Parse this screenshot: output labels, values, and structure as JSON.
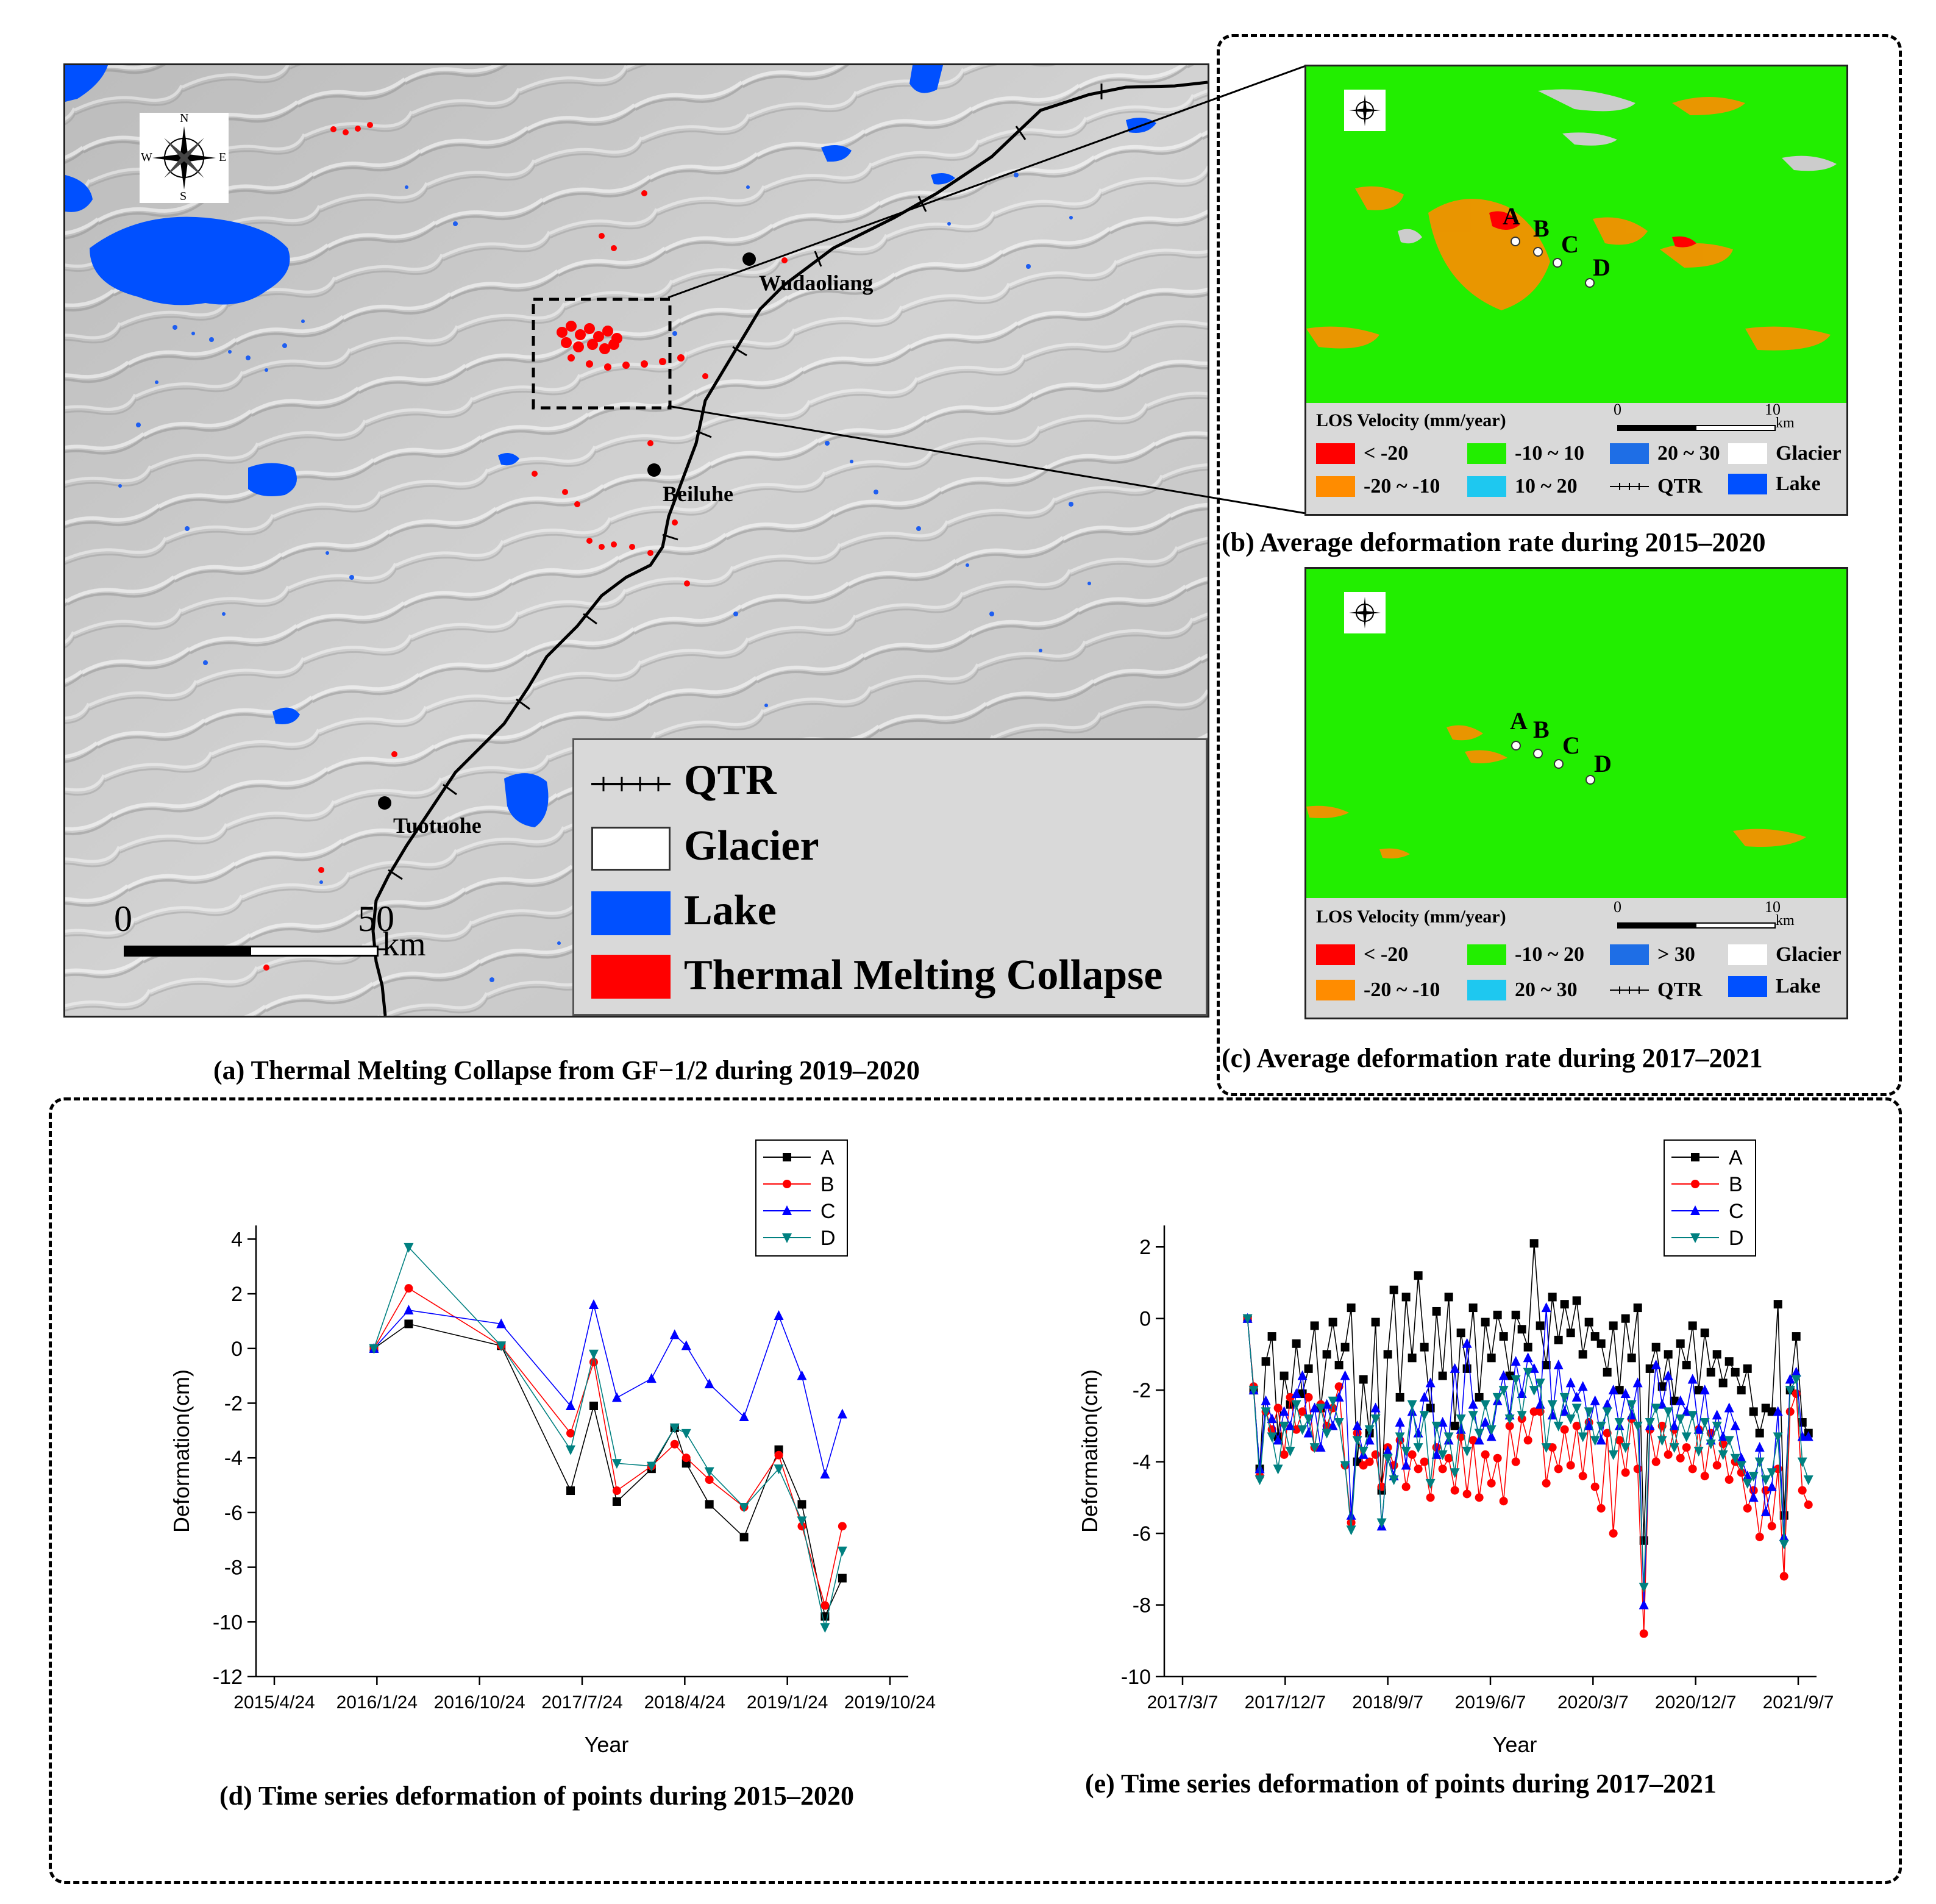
{
  "colors": {
    "deform_lt_neg20": "#ff0000",
    "deform_neg20_neg10": "#ff8c00",
    "deform_neg10_10": "#22ee00",
    "deform_10_20": "#1ec8f0",
    "deform_20_30": "#1e6ee6",
    "lake": "#0050ff",
    "collapse": "#ff0000",
    "series_A": "#000000",
    "series_B": "#ff0000",
    "series_C": "#0000ff",
    "series_D": "#008080"
  },
  "panel_a": {
    "caption": "(a) Thermal Melting Collapse from GF−1/2 during 2019–2020",
    "places": [
      "Wudaoliang",
      "Beiluhe",
      "Tuotuohe"
    ],
    "scale": {
      "zero": "0",
      "max": "50",
      "unit": "km"
    },
    "compass": {
      "n": "N",
      "s": "S",
      "e": "E",
      "w": "W"
    },
    "legend": {
      "qtr": "QTR",
      "glacier": "Glacier",
      "lake": "Lake",
      "collapse": "Thermal Melting Collapse"
    }
  },
  "panel_b": {
    "caption": "(b) Average deformation rate during 2015–2020",
    "points": [
      "A",
      "B",
      "C",
      "D"
    ],
    "scale": {
      "zero": "0",
      "max": "10",
      "unit": "km"
    },
    "legend": {
      "title": "LOS Velocity (mm/year)",
      "items": [
        "< -20",
        "-20 ~ -10",
        "-10 ~ 10",
        "10 ~ 20",
        "20 ~ 30",
        "QTR",
        "Glacier",
        "Lake"
      ]
    }
  },
  "panel_c": {
    "caption": "(c) Average deformation rate during 2017–2021",
    "points": [
      "A",
      "B",
      "C",
      "D"
    ],
    "scale": {
      "zero": "0",
      "max": "10",
      "unit": "km"
    },
    "legend": {
      "title": "LOS Velocity (mm/year)",
      "items": [
        "< -20",
        "-20 ~ -10",
        "-10 ~ 20",
        "20 ~ 30",
        "> 30",
        "QTR",
        "Glacier",
        "Lake"
      ]
    }
  },
  "chart_data": [
    {
      "type": "line",
      "title": "(d) Time series deformation of points during 2015–2020",
      "xlabel": "Year",
      "ylabel": "Deformation(cm)",
      "x_ticks": [
        "2015/4/24",
        "2016/1/24",
        "2016/10/24",
        "2017/7/24",
        "2018/4/24",
        "2019/1/24",
        "2019/10/24"
      ],
      "y_ticks": [
        "4",
        "2",
        "0",
        "-2",
        "-4",
        "-6",
        "-8",
        "-10",
        "-12"
      ],
      "ylim": [
        -12,
        4.5
      ],
      "x_months": [
        9,
        12,
        20,
        26,
        28,
        30,
        33,
        35,
        36,
        38,
        41,
        44,
        46,
        48,
        49.5
      ],
      "series": [
        {
          "name": "A",
          "values": [
            0,
            0.9,
            0.1,
            -5.2,
            -2.1,
            -5.6,
            -4.4,
            -2.9,
            -4.2,
            -5.7,
            -6.9,
            -3.7,
            -5.7,
            -9.8,
            -8.4
          ]
        },
        {
          "name": "B",
          "values": [
            0,
            2.2,
            0.1,
            -3.1,
            -0.5,
            -5.2,
            -4.3,
            -3.5,
            -4.0,
            -4.8,
            -5.8,
            -3.9,
            -6.5,
            -9.4,
            -6.5
          ]
        },
        {
          "name": "C",
          "values": [
            0,
            1.4,
            0.9,
            -2.1,
            1.6,
            -1.8,
            -1.1,
            0.5,
            0.1,
            -1.3,
            -2.5,
            1.2,
            -1.0,
            -4.6,
            -2.4
          ]
        },
        {
          "name": "D",
          "values": [
            0,
            3.7,
            0.1,
            -3.7,
            -0.2,
            -4.2,
            -4.3,
            -2.9,
            -3.1,
            -4.5,
            -5.8,
            -4.4,
            -6.3,
            -10.2,
            -7.4
          ]
        }
      ]
    },
    {
      "type": "line",
      "title": "(e) Time series deformation of points during 2017–2021",
      "xlabel": "Year",
      "ylabel": "Deformaiton(cm)",
      "x_ticks": [
        "2017/3/7",
        "2017/12/7",
        "2018/9/7",
        "2019/6/7",
        "2020/3/7",
        "2020/12/7",
        "2021/9/7"
      ],
      "y_ticks": [
        "2",
        "0",
        "-2",
        "-4",
        "-6",
        "-8",
        "-10"
      ],
      "ylim": [
        -10,
        2.6
      ],
      "x_start_month": 6,
      "x_end_month": 54.5,
      "series": [
        {
          "name": "A",
          "values": [
            0,
            -2.0,
            -4.2,
            -1.2,
            -0.5,
            -3.3,
            -1.6,
            -2.4,
            -0.7,
            -2.1,
            -1.4,
            -0.2,
            -2.5,
            -1.0,
            -0.1,
            -1.3,
            -0.8,
            0.3,
            -4.0,
            -1.7,
            -3.2,
            -0.1,
            -4.8,
            -1.0,
            0.8,
            -2.2,
            0.6,
            -1.1,
            1.2,
            -0.8,
            -2.5,
            0.2,
            -1.6,
            0.6,
            -3.0,
            -0.4,
            -1.4,
            0.3,
            -2.2,
            -0.1,
            -1.1,
            0.1,
            -0.5,
            -1.6,
            0.1,
            -0.3,
            -0.8,
            2.1,
            -0.2,
            -1.3,
            0.6,
            -0.6,
            0.4,
            -0.4,
            0.5,
            -1.0,
            -0.1,
            -0.5,
            -0.7,
            -1.5,
            -0.2,
            -2.0,
            0.0,
            -1.1,
            0.3,
            -6.2,
            -1.4,
            -0.8,
            -1.9,
            -1.0,
            -2.3,
            -0.7,
            -1.3,
            -0.2,
            -2.0,
            -0.4,
            -1.5,
            -1.0,
            -1.8,
            -1.2,
            -1.5,
            -2.0,
            -1.4,
            -2.6,
            -3.2,
            -2.5,
            -2.6,
            0.4,
            -5.5,
            -2.0,
            -0.5,
            -2.9,
            -3.2
          ]
        },
        {
          "name": "B",
          "values": [
            0,
            -1.9,
            -4.4,
            -2.6,
            -3.1,
            -2.5,
            -3.8,
            -2.2,
            -3.1,
            -2.6,
            -2.2,
            -3.6,
            -2.4,
            -3.0,
            -2.5,
            -1.9,
            -4.1,
            -5.7,
            -3.2,
            -4.1,
            -4.0,
            -3.8,
            -4.7,
            -3.6,
            -4.1,
            -3.4,
            -4.7,
            -3.8,
            -4.2,
            -4.0,
            -5.0,
            -3.6,
            -4.2,
            -3.9,
            -4.8,
            -3.3,
            -4.9,
            -3.4,
            -5.0,
            -3.8,
            -4.6,
            -3.9,
            -5.1,
            -3.0,
            -4.0,
            -2.8,
            -3.4,
            -2.6,
            -2.6,
            -4.6,
            -3.6,
            -4.2,
            -3.1,
            -4.1,
            -3.0,
            -4.4,
            -2.9,
            -4.7,
            -5.3,
            -3.2,
            -6.0,
            -3.4,
            -4.3,
            -2.8,
            -4.2,
            -8.8,
            -3.1,
            -4.0,
            -3.0,
            -3.8,
            -3.1,
            -3.9,
            -3.6,
            -4.2,
            -3.1,
            -4.4,
            -3.2,
            -4.1,
            -3.5,
            -4.5,
            -4.0,
            -4.3,
            -5.3,
            -4.8,
            -6.1,
            -4.8,
            -5.8,
            -4.2,
            -7.2,
            -2.6,
            -2.1,
            -4.8,
            -5.2
          ]
        },
        {
          "name": "C",
          "values": [
            0,
            -2.0,
            -4.2,
            -2.3,
            -2.8,
            -3.4,
            -2.6,
            -3.0,
            -2.1,
            -1.6,
            -3.2,
            -2.5,
            -3.6,
            -2.4,
            -3.0,
            -2.2,
            -1.6,
            -5.5,
            -3.0,
            -3.8,
            -3.4,
            -2.5,
            -5.8,
            -3.7,
            -4.4,
            -2.9,
            -4.1,
            -2.6,
            -3.2,
            -2.2,
            -1.8,
            -3.8,
            -2.9,
            -3.4,
            -1.4,
            -3.1,
            -0.7,
            -2.4,
            -3.4,
            -2.9,
            -3.3,
            -2.3,
            -1.6,
            -2.7,
            -1.2,
            -2.1,
            -1.1,
            -1.4,
            -2.4,
            0.3,
            -2.7,
            -1.3,
            -2.6,
            -1.8,
            -2.2,
            -1.9,
            -3.0,
            -2.3,
            -3.4,
            -2.4,
            -2.0,
            -3.0,
            -2.1,
            -2.7,
            -1.8,
            -8.0,
            -3.0,
            -1.3,
            -2.4,
            -1.6,
            -3.0,
            -2.3,
            -2.6,
            -1.7,
            -3.1,
            -2.0,
            -3.4,
            -2.7,
            -3.3,
            -2.5,
            -3.0,
            -3.9,
            -4.4,
            -5.0,
            -3.6,
            -5.4,
            -4.7,
            -2.6,
            -6.1,
            -1.7,
            -1.5,
            -3.3,
            -3.3
          ]
        },
        {
          "name": "D",
          "values": [
            0,
            -2.0,
            -4.5,
            -2.6,
            -3.3,
            -4.2,
            -3.0,
            -3.7,
            -2.4,
            -3.1,
            -2.8,
            -3.6,
            -2.5,
            -3.2,
            -2.3,
            -2.9,
            -4.1,
            -5.9,
            -3.4,
            -3.7,
            -3.1,
            -2.8,
            -5.7,
            -3.9,
            -4.5,
            -3.3,
            -3.7,
            -2.4,
            -3.6,
            -2.7,
            -4.6,
            -3.0,
            -3.8,
            -3.3,
            -4.3,
            -2.8,
            -3.7,
            -2.7,
            -3.2,
            -2.4,
            -3.1,
            -2.2,
            -2.0,
            -2.8,
            -1.7,
            -2.7,
            -1.5,
            -2.0,
            -1.8,
            -3.6,
            -2.4,
            -3.0,
            -2.2,
            -2.8,
            -2.5,
            -3.3,
            -2.6,
            -3.4,
            -3.0,
            -2.6,
            -3.8,
            -2.9,
            -3.6,
            -2.4,
            -3.0,
            -7.5,
            -2.9,
            -2.5,
            -3.4,
            -2.6,
            -3.6,
            -2.8,
            -3.3,
            -2.7,
            -3.7,
            -2.9,
            -3.5,
            -3.0,
            -3.8,
            -3.4,
            -3.9,
            -4.1,
            -4.6,
            -4.4,
            -4.0,
            -4.5,
            -4.3,
            -3.3,
            -6.3,
            -2.0,
            -1.7,
            -4.0,
            -4.5
          ]
        }
      ]
    }
  ]
}
